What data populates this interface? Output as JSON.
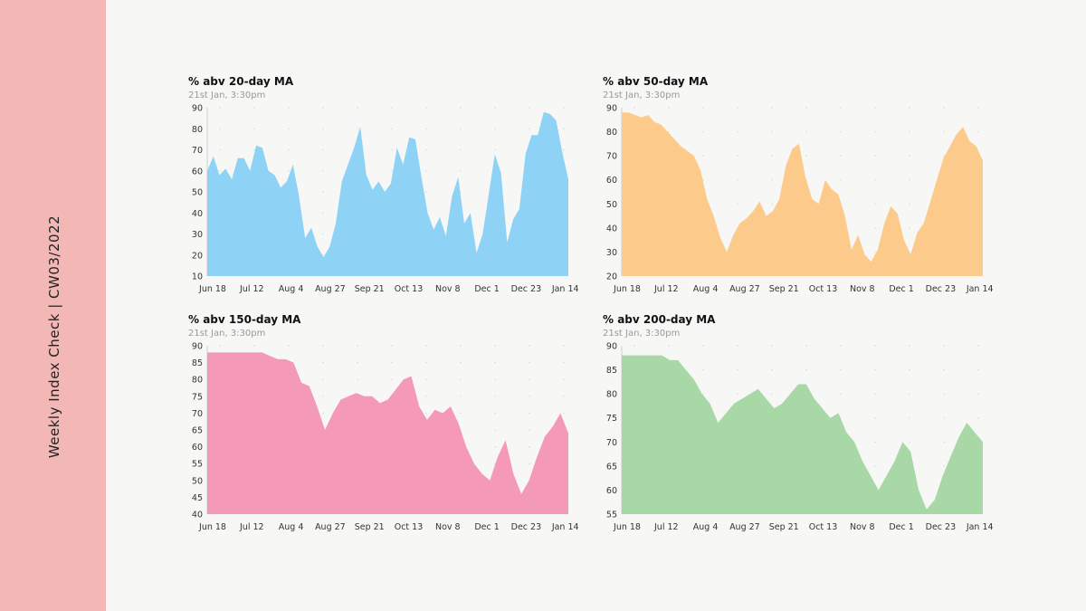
{
  "sidebar": {
    "title": "Weekly Index Check | CW03/2022",
    "color": "#f3b8b6"
  },
  "chart_data": [
    {
      "type": "area",
      "title": "% abv 20-day MA",
      "subtitle": "21st Jan, 3:30pm",
      "color": "#8ed3f6",
      "xlabels": [
        "Jun 18",
        "Jul 12",
        "Aug 4",
        "Aug 27",
        "Sep 21",
        "Oct 13",
        "Nov 8",
        "Dec 1",
        "Dec 23",
        "Jan 14"
      ],
      "yticks": [
        10,
        20,
        30,
        40,
        50,
        60,
        70,
        80,
        90
      ],
      "ylim": [
        10,
        90
      ],
      "values": [
        60,
        67,
        58,
        61,
        56,
        66,
        66,
        60,
        72,
        71,
        60,
        58,
        52,
        55,
        63,
        48,
        28,
        33,
        24,
        19,
        24,
        35,
        55,
        63,
        71,
        81,
        58,
        51,
        55,
        50,
        54,
        71,
        63,
        76,
        75,
        57,
        40,
        32,
        38,
        29,
        48,
        57,
        35,
        40,
        21,
        30,
        49,
        68,
        59,
        26,
        37,
        42,
        68,
        77,
        77,
        88,
        87,
        84,
        69,
        56
      ]
    },
    {
      "type": "area",
      "title": "% abv 50-day MA",
      "subtitle": "21st Jan, 3:30pm",
      "color": "#fccb8b",
      "xlabels": [
        "Jun 18",
        "Jul 12",
        "Aug 4",
        "Aug 27",
        "Sep 21",
        "Oct 13",
        "Nov 8",
        "Dec 1",
        "Dec 23",
        "Jan 14"
      ],
      "yticks": [
        20,
        30,
        40,
        50,
        60,
        70,
        80,
        90
      ],
      "ylim": [
        20,
        90
      ],
      "values": [
        88,
        88,
        87,
        86,
        87,
        84,
        83,
        80,
        77,
        74,
        72,
        70,
        64,
        52,
        45,
        36,
        30,
        37,
        42,
        44,
        47,
        51,
        45,
        47,
        52,
        66,
        73,
        75,
        61,
        52,
        50,
        60,
        56,
        54,
        45,
        31,
        37,
        29,
        26,
        31,
        42,
        49,
        46,
        35,
        29,
        38,
        42,
        51,
        60,
        69,
        74,
        79,
        82,
        76,
        74,
        68
      ]
    },
    {
      "type": "area",
      "title": "% abv 150-day MA",
      "subtitle": "21st Jan, 3:30pm",
      "color": "#f49ab8",
      "xlabels": [
        "Jun 18",
        "Jul 12",
        "Aug 4",
        "Aug 27",
        "Sep 21",
        "Oct 13",
        "Nov 8",
        "Dec 1",
        "Dec 23",
        "Jan 14"
      ],
      "yticks": [
        40,
        45,
        50,
        55,
        60,
        65,
        70,
        75,
        80,
        85,
        90
      ],
      "ylim": [
        40,
        90
      ],
      "values": [
        88,
        88,
        88,
        88,
        88,
        88,
        88,
        88,
        87,
        86,
        86,
        85,
        79,
        78,
        72,
        65,
        70,
        74,
        75,
        76,
        75,
        75,
        73,
        74,
        77,
        80,
        81,
        72,
        68,
        71,
        70,
        72,
        67,
        60,
        55,
        52,
        50,
        57,
        62,
        52,
        46,
        50,
        57,
        63,
        66,
        70,
        64
      ]
    },
    {
      "type": "area",
      "title": "% abv 200-day MA",
      "subtitle": "21st Jan, 3:30pm",
      "color": "#a8d8a6",
      "xlabels": [
        "Jun 18",
        "Jul 12",
        "Aug 4",
        "Aug 27",
        "Sep 21",
        "Oct 13",
        "Nov 8",
        "Dec 1",
        "Dec 23",
        "Jan 14"
      ],
      "yticks": [
        55,
        60,
        65,
        70,
        75,
        80,
        85,
        90
      ],
      "ylim": [
        55,
        90
      ],
      "values": [
        88,
        88,
        88,
        88,
        88,
        88,
        87,
        87,
        85,
        83,
        80,
        78,
        74,
        76,
        78,
        79,
        80,
        81,
        79,
        77,
        78,
        80,
        82,
        82,
        79,
        77,
        75,
        76,
        72,
        70,
        66,
        63,
        60,
        63,
        66,
        70,
        68,
        60,
        56,
        58,
        63,
        67,
        71,
        74,
        72,
        70
      ]
    }
  ]
}
